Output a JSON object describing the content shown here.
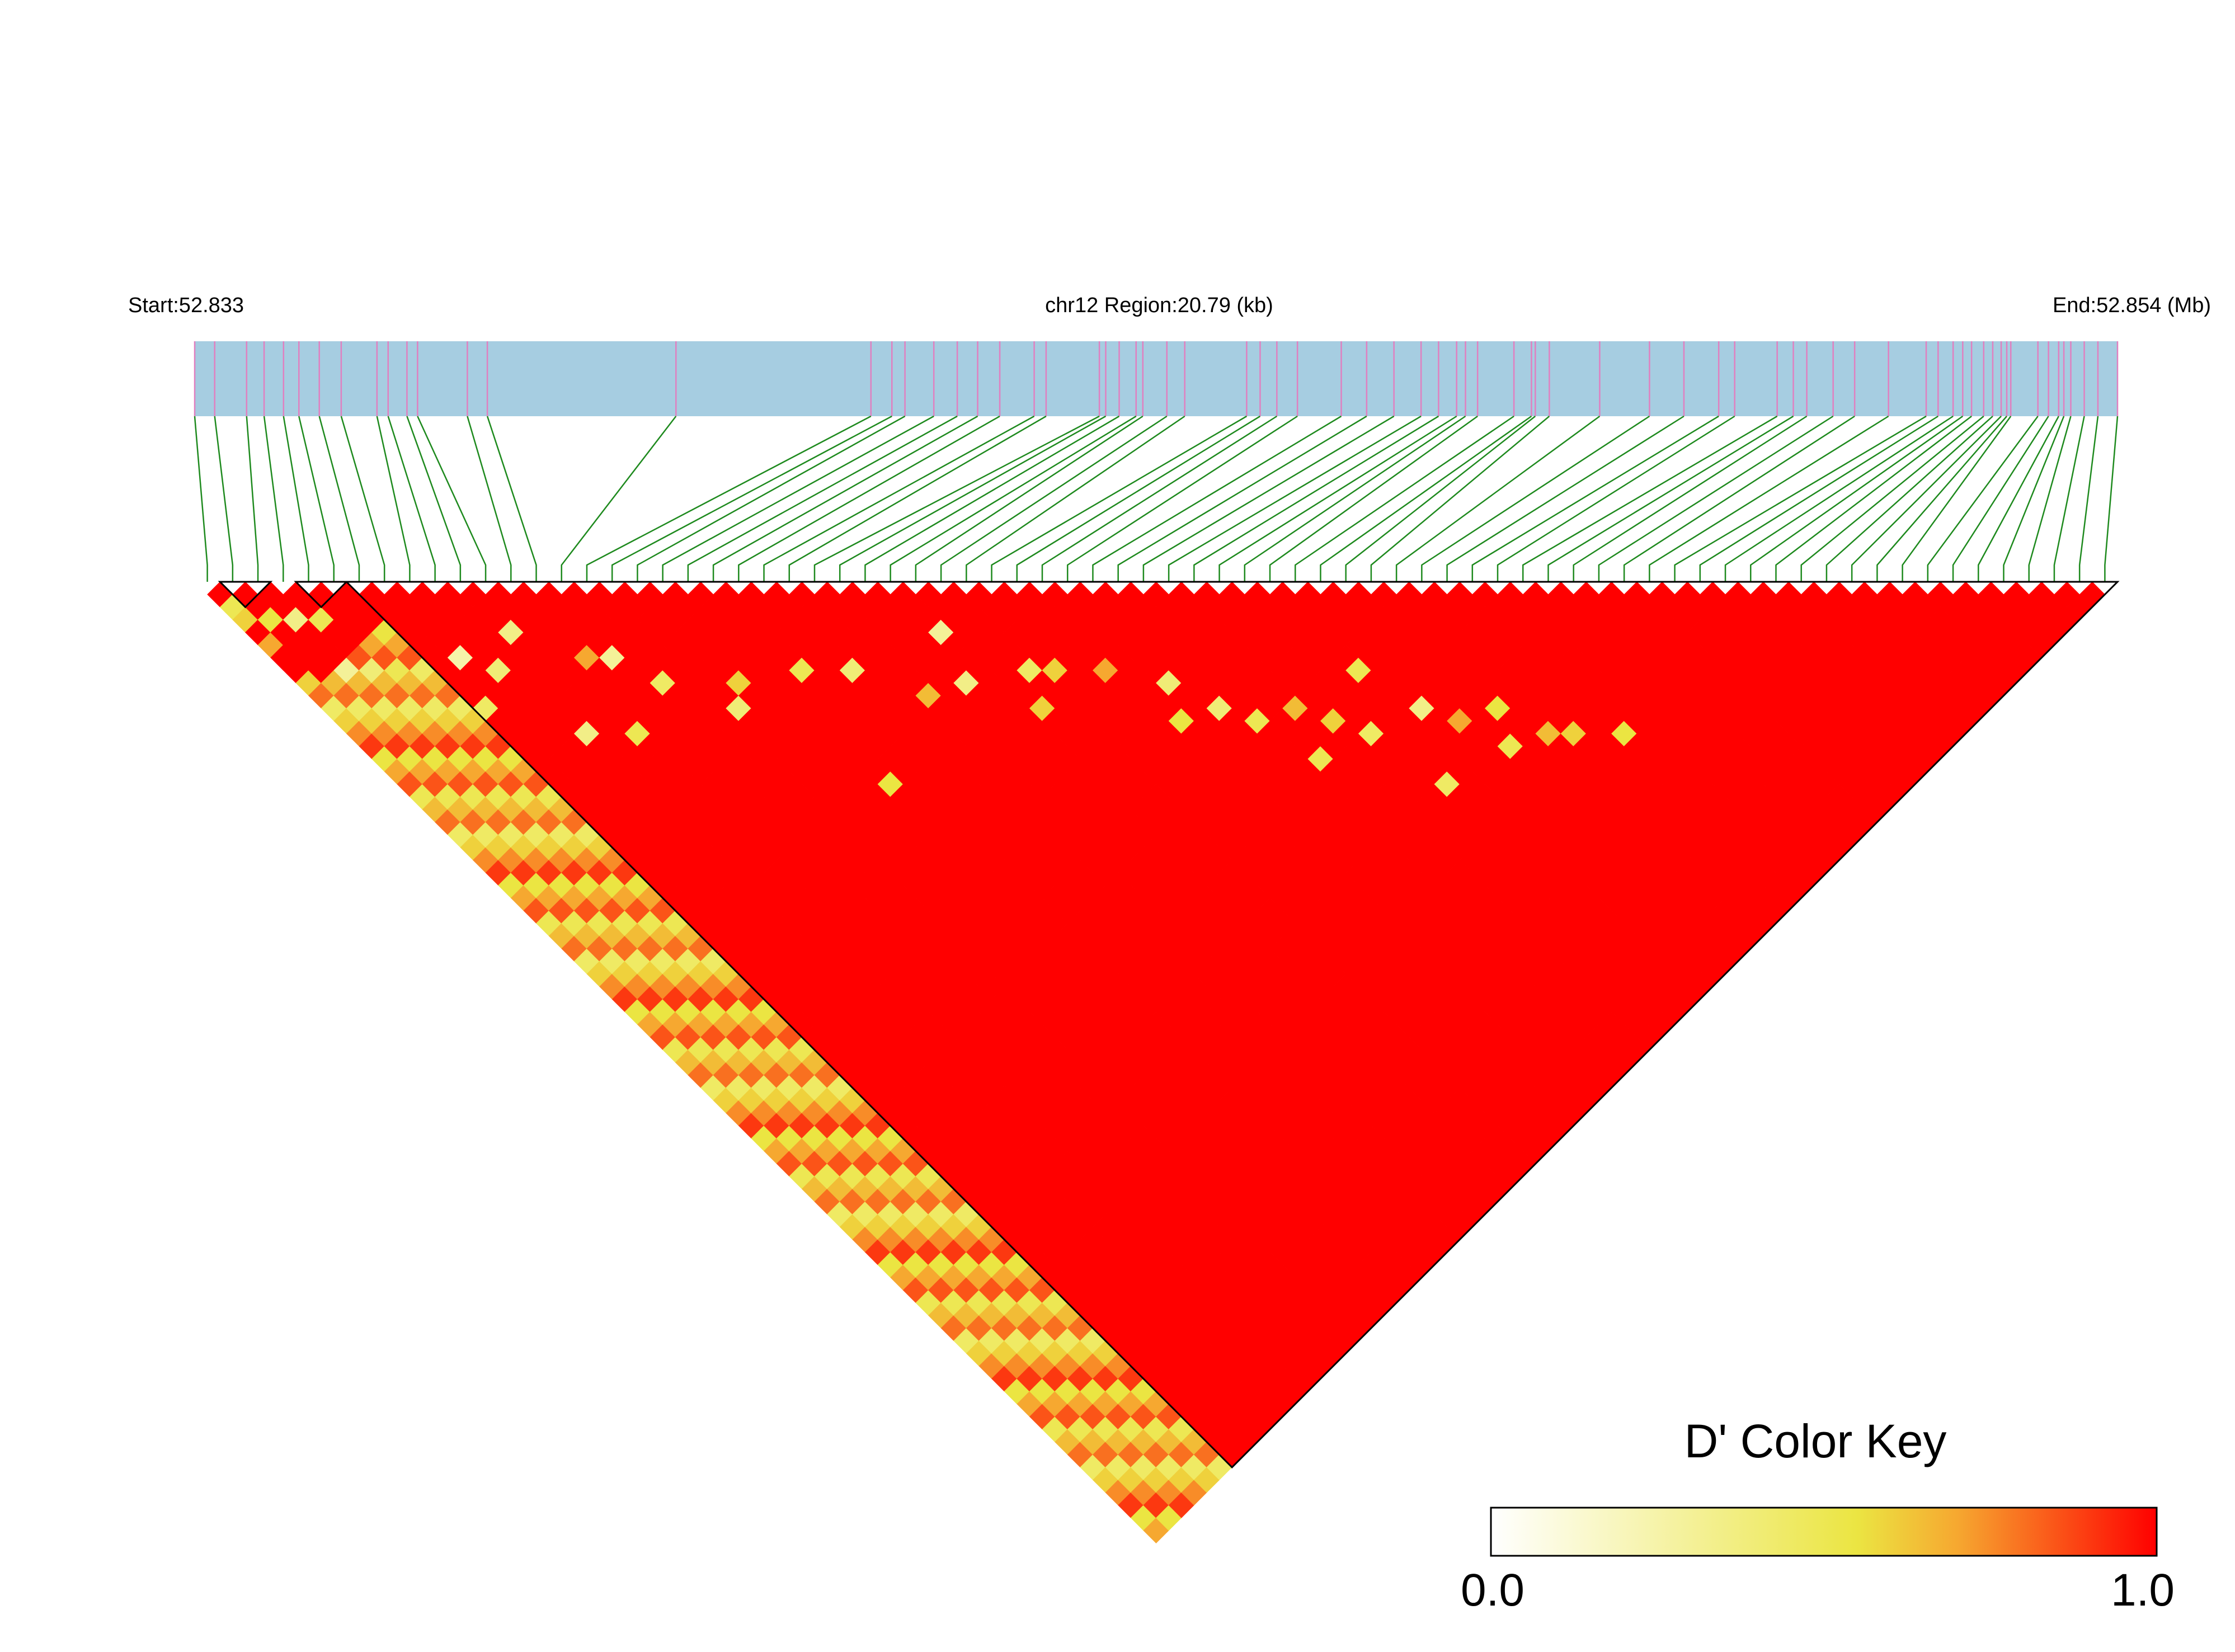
{
  "chart_data": {
    "type": "heatmap",
    "header": {
      "start_label": "Start:52.833",
      "region_label": "chr12 Region:20.79 (kb)",
      "end_label": "End:52.854 (Mb)"
    },
    "region": {
      "chromosome": "chr12",
      "start_mb": 52.833,
      "end_mb": 52.854,
      "length_kb": 20.79
    },
    "snp_count": 76,
    "snp_positions_fraction": [
      0,
      0.0104,
      0.027,
      0.0361,
      0.0462,
      0.0542,
      0.0648,
      0.0762,
      0.0948,
      0.1006,
      0.1104,
      0.1159,
      0.1418,
      0.1522,
      0.2503,
      0.3517,
      0.3626,
      0.3694,
      0.3844,
      0.3966,
      0.4072,
      0.4187,
      0.4366,
      0.4428,
      0.4705,
      0.4738,
      0.4808,
      0.4896,
      0.4931,
      0.5056,
      0.5149,
      0.5471,
      0.5541,
      0.5628,
      0.5735,
      0.5963,
      0.6095,
      0.6237,
      0.6378,
      0.6469,
      0.6563,
      0.6609,
      0.6672,
      0.6861,
      0.6952,
      0.6972,
      0.7045,
      0.7307,
      0.7566,
      0.7745,
      0.7926,
      0.8009,
      0.823,
      0.8314,
      0.8384,
      0.8521,
      0.8633,
      0.8809,
      0.9005,
      0.9067,
      0.9145,
      0.9195,
      0.9241,
      0.9304,
      0.9351,
      0.9395,
      0.9424,
      0.9445,
      0.9586,
      0.9641,
      0.9694,
      0.9721,
      0.9757,
      0.9827,
      0.9898,
      1
    ],
    "dprime_scale": {
      "min": 0.0,
      "max": 1.0
    },
    "ld_blocks": [
      {
        "snps": [
          1,
          2
        ]
      },
      {
        "snps": [
          4,
          5
        ]
      },
      {
        "snps": [
          6,
          75
        ]
      }
    ],
    "dprime_low_pairs": [
      {
        "i": 0,
        "j": 2,
        "d": 0.5
      },
      {
        "i": 0,
        "j": 3,
        "d": 0.6
      },
      {
        "i": 0,
        "j": 5,
        "d": 0.7
      },
      {
        "i": 1,
        "j": 4,
        "d": 0.55
      },
      {
        "i": 2,
        "j": 5,
        "d": 0.35
      },
      {
        "i": 3,
        "j": 6,
        "d": 0.5
      },
      {
        "i": 0,
        "j": 8,
        "d": 0.6
      },
      {
        "i": 2,
        "j": 9,
        "d": 0.3
      },
      {
        "i": 5,
        "j": 12,
        "d": 0.45
      },
      {
        "i": 8,
        "j": 15,
        "d": 0.4
      },
      {
        "i": 10,
        "j": 14,
        "d": 0.35
      },
      {
        "i": 12,
        "j": 18,
        "d": 0.7
      },
      {
        "i": 14,
        "j": 22,
        "d": 0.45
      },
      {
        "i": 13,
        "j": 19,
        "d": 0.3
      },
      {
        "i": 17,
        "j": 25,
        "d": 0.6
      },
      {
        "i": 20,
        "j": 27,
        "d": 0.5
      },
      {
        "i": 22,
        "j": 29,
        "d": 0.4
      },
      {
        "i": 24,
        "j": 33,
        "d": 0.65
      },
      {
        "i": 26,
        "j": 34,
        "d": 0.35
      },
      {
        "i": 27,
        "j": 31,
        "d": 0.3
      },
      {
        "i": 30,
        "j": 37,
        "d": 0.6
      },
      {
        "i": 29,
        "j": 36,
        "d": 0.45
      },
      {
        "i": 32,
        "j": 39,
        "d": 0.7
      },
      {
        "i": 33,
        "j": 44,
        "d": 0.55
      },
      {
        "i": 35,
        "j": 45,
        "d": 0.4
      },
      {
        "i": 36,
        "j": 47,
        "d": 0.5
      },
      {
        "i": 38,
        "j": 48,
        "d": 0.65
      },
      {
        "i": 39,
        "j": 50,
        "d": 0.6
      },
      {
        "i": 40,
        "j": 52,
        "d": 0.45
      },
      {
        "i": 42,
        "j": 49,
        "d": 0.5
      },
      {
        "i": 43,
        "j": 53,
        "d": 0.35
      },
      {
        "i": 44,
        "j": 55,
        "d": 0.7
      },
      {
        "i": 46,
        "j": 56,
        "d": 0.55
      },
      {
        "i": 45,
        "j": 58,
        "d": 0.5
      },
      {
        "i": 47,
        "j": 59,
        "d": 0.65
      },
      {
        "i": 48,
        "j": 60,
        "d": 0.6
      },
      {
        "i": 50,
        "j": 62,
        "d": 0.55
      },
      {
        "i": 3,
        "j": 10,
        "d": 0.4
      },
      {
        "i": 6,
        "j": 16,
        "d": 0.45
      },
      {
        "i": 9,
        "j": 21,
        "d": 0.35
      },
      {
        "i": 11,
        "j": 23,
        "d": 0.5
      },
      {
        "i": 16,
        "j": 26,
        "d": 0.4
      },
      {
        "i": 19,
        "j": 35,
        "d": 0.55
      },
      {
        "i": 28,
        "j": 38,
        "d": 0.6
      },
      {
        "i": 37,
        "j": 51,
        "d": 0.5
      },
      {
        "i": 41,
        "j": 57,
        "d": 0.45
      },
      {
        "i": 7,
        "j": 13,
        "d": 0.25
      },
      {
        "i": 34,
        "j": 42,
        "d": 0.4
      }
    ],
    "color_key": {
      "title": "D' Color Key",
      "min_label": "0.0",
      "max_label": "1.0",
      "stops": [
        "#ffffff",
        "#ebe542",
        "#ff0000"
      ]
    },
    "colors": {
      "gene_track": "#a6cde1",
      "snp_tick": "#e080c0",
      "connector": "#1e8a1e",
      "strong_ld": "#ff0000",
      "block_outline": "#000000"
    }
  }
}
